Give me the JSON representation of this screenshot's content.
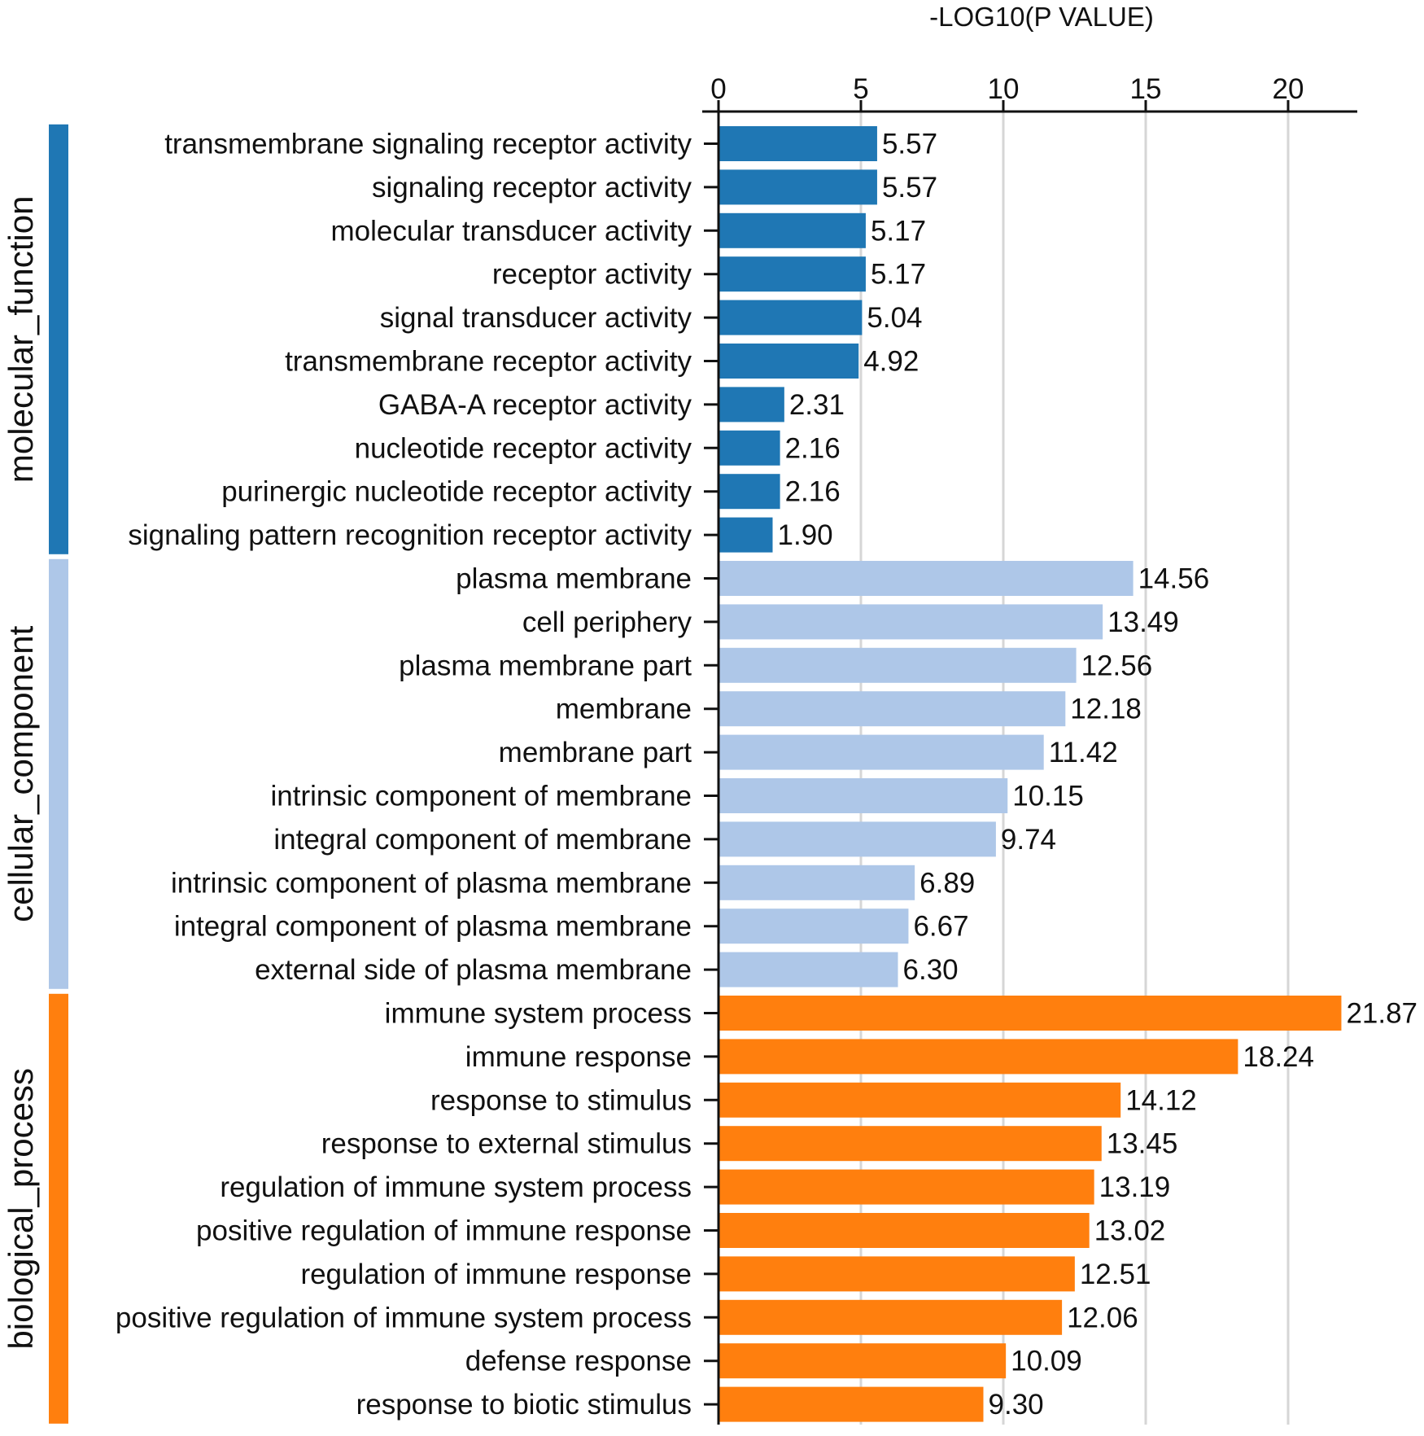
{
  "chart_data": {
    "type": "bar",
    "orientation": "horizontal",
    "title": "",
    "xlabel": "-LOG10(P VALUE)",
    "ylabel": "",
    "xlim": [
      0,
      22.5
    ],
    "xticks": [
      "0",
      "5",
      "10",
      "15",
      "20"
    ],
    "xaxis_position": "top",
    "grid": "vertical lines at major ticks",
    "groups": [
      {
        "name": "molecular_function",
        "color": "#1f77b4",
        "categories": [
          "transmembrane signaling receptor activity",
          "signaling receptor activity",
          "molecular transducer activity",
          "receptor activity",
          "signal transducer activity",
          "transmembrane receptor activity",
          "GABA-A receptor activity",
          "nucleotide receptor activity",
          "purinergic nucleotide receptor activity",
          "signaling pattern recognition receptor activity"
        ],
        "values": [
          5.57,
          5.57,
          5.17,
          5.17,
          5.04,
          4.92,
          2.31,
          2.16,
          2.16,
          1.9
        ],
        "labels": [
          "5.57",
          "5.57",
          "5.17",
          "5.17",
          "5.04",
          "4.92",
          "2.31",
          "2.16",
          "2.16",
          "1.90"
        ]
      },
      {
        "name": "cellular_component",
        "color": "#aec7e8",
        "categories": [
          "plasma membrane",
          "cell periphery",
          "plasma membrane part",
          "membrane",
          "membrane part",
          "intrinsic component of membrane",
          "integral component of membrane",
          "intrinsic component of plasma membrane",
          "integral component of plasma membrane",
          "external side of plasma membrane"
        ],
        "values": [
          14.56,
          13.49,
          12.56,
          12.18,
          11.42,
          10.15,
          9.74,
          6.89,
          6.67,
          6.3
        ],
        "labels": [
          "14.56",
          "13.49",
          "12.56",
          "12.18",
          "11.42",
          "10.15",
          "9.74",
          "6.89",
          "6.67",
          "6.30"
        ]
      },
      {
        "name": "biological_process",
        "color": "#ff7f0e",
        "categories": [
          "immune system process",
          "immune response",
          "response to stimulus",
          "response to external stimulus",
          "regulation of immune system process",
          "positive regulation of immune response",
          "regulation of immune response",
          "positive regulation of immune system process",
          "defense response",
          "response to biotic stimulus"
        ],
        "values": [
          21.87,
          18.24,
          14.12,
          13.45,
          13.19,
          13.02,
          12.51,
          12.06,
          10.09,
          9.3
        ],
        "labels": [
          "21.87",
          "18.24",
          "14.12",
          "13.45",
          "13.19",
          "13.02",
          "12.51",
          "12.06",
          "10.09",
          "9.30"
        ]
      }
    ]
  }
}
